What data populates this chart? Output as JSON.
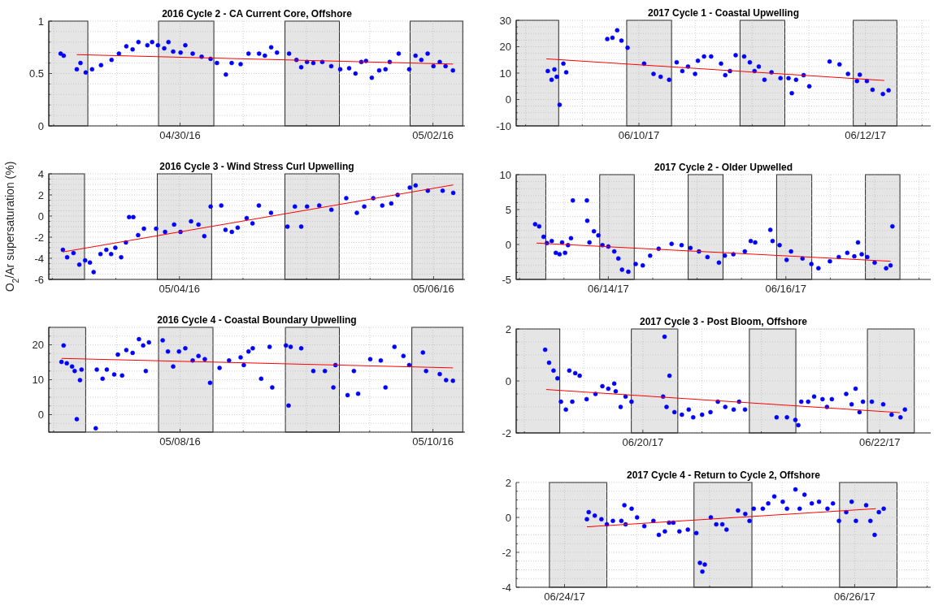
{
  "chart_data": [
    {
      "type": "scatter",
      "title": "2016 Cycle 2 - CA Current Core, Offshore",
      "marker": "circle",
      "grid": true,
      "xlim": [
        "2016-04-28T23:05",
        "2016-05-02T06:05"
      ],
      "xticks": [
        {
          "value": "2016-04-29T00:00",
          "label": null
        },
        {
          "value": "2016-04-29T12:00",
          "label": null
        },
        {
          "value": "2016-04-30T00:00",
          "label": "04/30/16"
        },
        {
          "value": "2016-04-30T12:00",
          "label": null
        },
        {
          "value": "2016-05-01T00:00",
          "label": null
        },
        {
          "value": "2016-05-01T12:00",
          "label": null
        },
        {
          "value": "2016-05-02T00:00",
          "label": "05/02/16"
        }
      ],
      "ylim": [
        0,
        1
      ],
      "yticks": [
        0,
        {
          "value": 0.1,
          "label": null
        },
        {
          "value": 0.2,
          "label": null
        },
        {
          "value": 0.3,
          "label": null
        },
        {
          "value": 0.4,
          "label": null
        },
        0.5,
        {
          "value": 0.6,
          "label": null
        },
        {
          "value": 0.7,
          "label": null
        },
        {
          "value": 0.8,
          "label": null
        },
        {
          "value": 0.9,
          "label": null
        },
        1
      ],
      "bands": [
        {
          "axis": "x",
          "from": "2016-04-28T23:05",
          "to": "2016-04-29T06:30",
          "color": "#e5e5e5"
        },
        {
          "axis": "x",
          "from": "2016-04-29T19:55",
          "to": "2016-04-30T06:25",
          "color": "#e5e5e5"
        },
        {
          "axis": "x",
          "from": "2016-04-30T19:55",
          "to": "2016-05-01T06:15",
          "color": "#e5e5e5"
        },
        {
          "axis": "x",
          "from": "2016-05-01T19:40",
          "to": "2016-05-02T05:40",
          "color": "#e5e5e5"
        }
      ],
      "series": [
        {
          "type": "scatter",
          "color": "#0000ff",
          "x": [
            "2016-04-29T01:20",
            "2016-04-29T01:55",
            "2016-04-29T04:24",
            "2016-04-29T05:06",
            "2016-04-29T06:06",
            "2016-04-29T07:18",
            "2016-04-29T09:00",
            "2016-04-29T11:00",
            "2016-04-29T12:24",
            "2016-04-29T13:48",
            "2016-04-29T15:00",
            "2016-04-29T16:06",
            "2016-04-29T17:48",
            "2016-04-29T18:42",
            "2016-04-29T19:48",
            "2016-04-29T21:00",
            "2016-04-29T21:48",
            "2016-04-29T22:42",
            "2016-04-30T00:06",
            "2016-04-30T01:00",
            "2016-04-30T02:24",
            "2016-04-30T04:06",
            "2016-04-30T05:48",
            "2016-04-30T07:00",
            "2016-04-30T08:42",
            "2016-04-30T09:48",
            "2016-04-30T11:30",
            "2016-04-30T13:00",
            "2016-04-30T15:00",
            "2016-04-30T16:06",
            "2016-04-30T17:18",
            "2016-04-30T18:24",
            "2016-04-30T20:42",
            "2016-04-30T22:06",
            "2016-04-30T23:00",
            "2016-05-01T00:06",
            "2016-05-01T01:18",
            "2016-05-01T03:00",
            "2016-05-01T04:42",
            "2016-05-01T06:24",
            "2016-05-01T08:06",
            "2016-05-01T09:18",
            "2016-05-01T10:24",
            "2016-05-01T11:18",
            "2016-05-01T12:24",
            "2016-05-01T13:48",
            "2016-05-01T15:00",
            "2016-05-01T15:48",
            "2016-05-01T17:30",
            "2016-05-01T19:30",
            "2016-05-01T20:42",
            "2016-05-01T21:48",
            "2016-05-01T23:00",
            "2016-05-02T00:06",
            "2016-05-02T01:18",
            "2016-05-02T02:24",
            "2016-05-02T03:48"
          ],
          "values": [
            0.69,
            0.67,
            0.54,
            0.6,
            0.51,
            0.54,
            0.58,
            0.63,
            0.69,
            0.76,
            0.73,
            0.8,
            0.77,
            0.8,
            0.77,
            0.74,
            0.8,
            0.71,
            0.7,
            0.77,
            0.69,
            0.66,
            0.64,
            0.6,
            0.49,
            0.6,
            0.59,
            0.69,
            0.69,
            0.67,
            0.75,
            0.7,
            0.69,
            0.63,
            0.56,
            0.61,
            0.6,
            0.61,
            0.57,
            0.54,
            0.55,
            0.5,
            0.61,
            0.62,
            0.46,
            0.53,
            0.54,
            0.61,
            0.69,
            0.54,
            0.67,
            0.63,
            0.69,
            0.57,
            0.61,
            0.57,
            0.53
          ]
        },
        {
          "type": "line",
          "color": "#ff0000",
          "marker": "none",
          "x": [
            "2016-04-29T04:24",
            "2016-05-02T03:48"
          ],
          "values": [
            0.68,
            0.59
          ]
        }
      ]
    },
    {
      "type": "scatter",
      "title": "2017 Cycle 1 - Coastal Upwelling",
      "marker": "circle",
      "grid": true,
      "xlim": [
        "2017-06-08T22:00",
        "2017-06-12T13:50"
      ],
      "xticks": [
        {
          "value": "2017-06-09T00:00",
          "label": null
        },
        {
          "value": "2017-06-09T12:00",
          "label": null
        },
        {
          "value": "2017-06-10T00:00",
          "label": "06/10/17"
        },
        {
          "value": "2017-06-10T12:00",
          "label": null
        },
        {
          "value": "2017-06-11T00:00",
          "label": null
        },
        {
          "value": "2017-06-11T12:00",
          "label": null
        },
        {
          "value": "2017-06-12T00:00",
          "label": "06/12/17"
        },
        {
          "value": "2017-06-12T12:00",
          "label": null
        }
      ],
      "ylim": [
        -10,
        30
      ],
      "yticks": [
        -10,
        {
          "value": -7.5,
          "label": null
        },
        {
          "value": -5,
          "label": null
        },
        {
          "value": -2.5,
          "label": null
        },
        0,
        {
          "value": 2.5,
          "label": null
        },
        {
          "value": 5,
          "label": null
        },
        {
          "value": 7.5,
          "label": null
        },
        10,
        {
          "value": 12.5,
          "label": null
        },
        {
          "value": 15,
          "label": null
        },
        {
          "value": 17.5,
          "label": null
        },
        20,
        {
          "value": 22.5,
          "label": null
        },
        {
          "value": 25,
          "label": null
        },
        {
          "value": 27.5,
          "label": null
        },
        30
      ],
      "bands": [
        {
          "axis": "x",
          "from": "2017-06-08T22:00",
          "to": "2017-06-09T07:00",
          "color": "#e5e5e5"
        },
        {
          "axis": "x",
          "from": "2017-06-09T21:25",
          "to": "2017-06-10T06:55",
          "color": "#e5e5e5"
        },
        {
          "axis": "x",
          "from": "2017-06-10T21:25",
          "to": "2017-06-11T06:55",
          "color": "#e5e5e5"
        },
        {
          "axis": "x",
          "from": "2017-06-11T21:25",
          "to": "2017-06-12T06:40",
          "color": "#e5e5e5"
        }
      ],
      "series": [
        {
          "type": "scatter",
          "color": "#0000ff",
          "x": [
            "2017-06-09T04:42",
            "2017-06-09T05:30",
            "2017-06-09T06:06",
            "2017-06-09T06:36",
            "2017-06-09T07:12",
            "2017-06-09T08:00",
            "2017-06-09T08:36",
            "2017-06-09T17:18",
            "2017-06-09T18:24",
            "2017-06-09T19:24",
            "2017-06-09T20:18",
            "2017-06-09T21:36",
            "2017-06-10T01:06",
            "2017-06-10T03:06",
            "2017-06-10T04:36",
            "2017-06-10T06:24",
            "2017-06-10T08:00",
            "2017-06-10T09:12",
            "2017-06-10T10:24",
            "2017-06-10T11:54",
            "2017-06-10T12:30",
            "2017-06-10T13:48",
            "2017-06-10T15:18",
            "2017-06-10T17:24",
            "2017-06-10T18:18",
            "2017-06-10T19:18",
            "2017-06-10T20:30",
            "2017-06-10T22:18",
            "2017-06-10T23:30",
            "2017-06-11T00:30",
            "2017-06-11T01:24",
            "2017-06-11T02:36",
            "2017-06-11T04:06",
            "2017-06-11T06:00",
            "2017-06-11T07:42",
            "2017-06-11T08:24",
            "2017-06-11T09:18",
            "2017-06-11T10:54",
            "2017-06-11T12:06",
            "2017-06-11T16:24",
            "2017-06-11T18:30",
            "2017-06-11T20:18",
            "2017-06-11T22:12",
            "2017-06-11T22:48",
            "2017-06-12T00:18",
            "2017-06-12T01:30",
            "2017-06-12T03:42",
            "2017-06-12T04:54"
          ],
          "values": [
            10.8,
            7.5,
            11.4,
            8.6,
            -2,
            13.6,
            10.3,
            22.9,
            23.4,
            26.2,
            22.3,
            19.6,
            13.6,
            9.7,
            8.6,
            7.5,
            14.1,
            10.8,
            12.5,
            9.7,
            14.7,
            16.3,
            16.3,
            13.6,
            9.2,
            10.8,
            16.8,
            16.3,
            14.1,
            10.8,
            12.5,
            7.5,
            10.3,
            8.1,
            8.1,
            2.4,
            7.5,
            9.2,
            5,
            14.4,
            13.3,
            9.7,
            7,
            9.4,
            7,
            3.7,
            2.1,
            3.5
          ]
        },
        {
          "type": "line",
          "color": "#ff0000",
          "marker": "none",
          "x": [
            "2017-06-09T04:24",
            "2017-06-12T04:00"
          ],
          "values": [
            15.4,
            7.2
          ]
        }
      ]
    },
    {
      "type": "scatter",
      "title": "2016 Cycle 3 - Wind Stress Curl Upwelling",
      "ylabel": "O$_{2}$/Ar supersaturation (%)",
      "marker": "circle",
      "grid": true,
      "xlim": [
        "2016-05-02T23:20",
        "2016-05-06T05:55"
      ],
      "xticks": [
        {
          "value": "2016-05-03T00:00",
          "label": null
        },
        {
          "value": "2016-05-03T12:00",
          "label": null
        },
        {
          "value": "2016-05-04T00:00",
          "label": "05/04/16"
        },
        {
          "value": "2016-05-04T12:00",
          "label": null
        },
        {
          "value": "2016-05-05T00:00",
          "label": null
        },
        {
          "value": "2016-05-05T12:00",
          "label": null
        },
        {
          "value": "2016-05-06T00:00",
          "label": "05/06/16"
        }
      ],
      "ylim": [
        -6,
        4
      ],
      "yticks": [
        -6,
        {
          "value": -5.5,
          "label": null
        },
        {
          "value": -5,
          "label": null
        },
        {
          "value": -4.5,
          "label": null
        },
        -4,
        {
          "value": -3.5,
          "label": null
        },
        {
          "value": -3,
          "label": null
        },
        {
          "value": -2.5,
          "label": null
        },
        -2,
        {
          "value": -1.5,
          "label": null
        },
        {
          "value": -1,
          "label": null
        },
        {
          "value": -0.5,
          "label": null
        },
        0,
        {
          "value": 0.5,
          "label": null
        },
        {
          "value": 1,
          "label": null
        },
        {
          "value": 1.5,
          "label": null
        },
        2,
        {
          "value": 2.5,
          "label": null
        },
        {
          "value": 3,
          "label": null
        },
        {
          "value": 3.5,
          "label": null
        },
        4
      ],
      "bands": [
        {
          "axis": "x",
          "from": "2016-05-02T23:20",
          "to": "2016-05-03T06:05",
          "color": "#e5e5e5"
        },
        {
          "axis": "x",
          "from": "2016-05-03T19:50",
          "to": "2016-05-04T06:05",
          "color": "#e5e5e5"
        },
        {
          "axis": "x",
          "from": "2016-05-04T19:55",
          "to": "2016-05-05T06:10",
          "color": "#e5e5e5"
        },
        {
          "axis": "x",
          "from": "2016-05-05T19:55",
          "to": "2016-05-06T05:30",
          "color": "#e5e5e5"
        }
      ],
      "series": [
        {
          "type": "scatter",
          "color": "#0000ff",
          "x": [
            "2016-05-03T02:00",
            "2016-05-03T02:48",
            "2016-05-03T04:00",
            "2016-05-03T05:06",
            "2016-05-03T06:12",
            "2016-05-03T07:06",
            "2016-05-03T07:48",
            "2016-05-03T09:06",
            "2016-05-03T10:12",
            "2016-05-03T11:06",
            "2016-05-03T11:54",
            "2016-05-03T13:00",
            "2016-05-03T13:54",
            "2016-05-03T14:30",
            "2016-05-03T15:18",
            "2016-05-03T16:12",
            "2016-05-03T17:18",
            "2016-05-03T19:36",
            "2016-05-03T21:18",
            "2016-05-03T23:00",
            "2016-05-04T00:12",
            "2016-05-04T02:12",
            "2016-05-04T03:36",
            "2016-05-04T04:42",
            "2016-05-04T05:54",
            "2016-05-04T07:54",
            "2016-05-04T08:42",
            "2016-05-04T09:54",
            "2016-05-04T11:00",
            "2016-05-04T12:42",
            "2016-05-04T13:48",
            "2016-05-04T15:00",
            "2016-05-04T17:18",
            "2016-05-04T20:24",
            "2016-05-04T21:48",
            "2016-05-04T23:00",
            "2016-05-05T00:06",
            "2016-05-05T02:24",
            "2016-05-05T04:42",
            "2016-05-05T07:30",
            "2016-05-05T09:30",
            "2016-05-05T10:54",
            "2016-05-05T12:36",
            "2016-05-05T14:18",
            "2016-05-05T16:00",
            "2016-05-05T17:12",
            "2016-05-05T19:30",
            "2016-05-05T20:36",
            "2016-05-05T22:54",
            "2016-05-06T01:42",
            "2016-05-06T03:42"
          ],
          "values": [
            -3.2,
            -3.9,
            -3.5,
            -4.6,
            -4.2,
            -4.4,
            -5.3,
            -3.6,
            -3.2,
            -3.6,
            -3,
            -3.9,
            -2.5,
            -0.1,
            -0.1,
            -1.8,
            -1.2,
            -1.2,
            -1.5,
            -0.8,
            -1.5,
            -0.5,
            -0.8,
            -1.9,
            0.9,
            1,
            -1.3,
            -1.5,
            -1.1,
            -0.2,
            -0.7,
            1,
            0.3,
            -1,
            0.9,
            -1,
            0.9,
            1,
            0.6,
            1.7,
            0.3,
            0.9,
            1.7,
            1,
            1.2,
            2,
            2.7,
            2.9,
            2.4,
            2.4,
            2.2
          ]
        },
        {
          "type": "line",
          "color": "#ff0000",
          "marker": "none",
          "x": [
            "2016-05-03T02:00",
            "2016-05-06T03:42"
          ],
          "values": [
            -3.4,
            2.95
          ]
        }
      ]
    },
    {
      "type": "scatter",
      "title": "2017 Cycle 2 - Older Upwelled",
      "marker": "circle",
      "grid": true,
      "xlim": [
        "2017-06-12T23:05",
        "2017-06-17T15:10"
      ],
      "xticks": [
        {
          "value": "2017-06-13T00:00",
          "label": null
        },
        {
          "value": "2017-06-13T12:00",
          "label": null
        },
        {
          "value": "2017-06-14T00:00",
          "label": "06/14/17"
        },
        {
          "value": "2017-06-14T12:00",
          "label": null
        },
        {
          "value": "2017-06-15T00:00",
          "label": null
        },
        {
          "value": "2017-06-15T12:00",
          "label": null
        },
        {
          "value": "2017-06-16T00:00",
          "label": "06/16/17"
        },
        {
          "value": "2017-06-16T12:00",
          "label": null
        },
        {
          "value": "2017-06-17T00:00",
          "label": null
        },
        {
          "value": "2017-06-17T12:00",
          "label": null
        }
      ],
      "ylim": [
        -5,
        10
      ],
      "yticks": [
        -5,
        {
          "value": -4,
          "label": null
        },
        {
          "value": -3,
          "label": null
        },
        {
          "value": -2,
          "label": null
        },
        {
          "value": -1,
          "label": null
        },
        0,
        {
          "value": 1,
          "label": null
        },
        {
          "value": 2,
          "label": null
        },
        {
          "value": 3,
          "label": null
        },
        {
          "value": 4,
          "label": null
        },
        5,
        {
          "value": 6,
          "label": null
        },
        {
          "value": 7,
          "label": null
        },
        {
          "value": 8,
          "label": null
        },
        {
          "value": 9,
          "label": null
        },
        10
      ],
      "bands": [
        {
          "axis": "x",
          "from": "2017-06-12T23:05",
          "to": "2017-06-13T07:05",
          "color": "#e5e5e5"
        },
        {
          "axis": "x",
          "from": "2017-06-13T21:40",
          "to": "2017-06-14T07:00",
          "color": "#e5e5e5"
        },
        {
          "axis": "x",
          "from": "2017-06-14T21:35",
          "to": "2017-06-15T07:00",
          "color": "#e5e5e5"
        },
        {
          "axis": "x",
          "from": "2017-06-15T21:30",
          "to": "2017-06-16T07:00",
          "color": "#e5e5e5"
        },
        {
          "axis": "x",
          "from": "2017-06-16T21:30",
          "to": "2017-06-17T06:50",
          "color": "#e5e5e5"
        }
      ],
      "series": [
        {
          "type": "scatter",
          "color": "#0000ff",
          "x": [
            "2017-06-13T04:12",
            "2017-06-13T05:18",
            "2017-06-13T06:30",
            "2017-06-13T07:24",
            "2017-06-13T08:42",
            "2017-06-13T09:48",
            "2017-06-13T10:48",
            "2017-06-13T11:30",
            "2017-06-13T12:18",
            "2017-06-13T13:06",
            "2017-06-13T13:54",
            "2017-06-13T14:24",
            "2017-06-13T18:12",
            "2017-06-13T18:18",
            "2017-06-13T18:54",
            "2017-06-13T20:06",
            "2017-06-13T21:18",
            "2017-06-13T22:24",
            "2017-06-14T00:00",
            "2017-06-14T01:36",
            "2017-06-14T02:42",
            "2017-06-14T03:42",
            "2017-06-14T05:24",
            "2017-06-14T07:24",
            "2017-06-14T09:18",
            "2017-06-14T11:18",
            "2017-06-14T13:36",
            "2017-06-14T17:06",
            "2017-06-14T19:48",
            "2017-06-14T22:12",
            "2017-06-15T00:30",
            "2017-06-15T02:48",
            "2017-06-15T05:54",
            "2017-06-15T07:30",
            "2017-06-15T09:48",
            "2017-06-15T12:54",
            "2017-06-15T14:30",
            "2017-06-15T15:42",
            "2017-06-15T19:48",
            "2017-06-15T20:24",
            "2017-06-15T22:18",
            "2017-06-16T00:12",
            "2017-06-16T01:24",
            "2017-06-16T04:30",
            "2017-06-16T06:54",
            "2017-06-16T08:48",
            "2017-06-16T11:54",
            "2017-06-16T14:18",
            "2017-06-16T16:36",
            "2017-06-16T18:30",
            "2017-06-16T19:30",
            "2017-06-16T20:30",
            "2017-06-16T22:00",
            "2017-06-17T00:00",
            "2017-06-17T03:06",
            "2017-06-17T04:18",
            "2017-06-17T04:48"
          ],
          "values": [
            2.9,
            2.6,
            1.1,
            0.2,
            0.5,
            -1.2,
            -1.4,
            0.3,
            -1.2,
            -0.1,
            0.9,
            6.3,
            6.3,
            3.4,
            0.3,
            1.9,
            1.3,
            -0.1,
            -0.3,
            -1,
            -2,
            -3.6,
            -3.9,
            -2.8,
            -3,
            -1.6,
            -0.6,
            0.1,
            -0.1,
            -0.5,
            -1,
            -1.8,
            -2.6,
            -1.6,
            -1.4,
            -1,
            0.5,
            0.3,
            2.1,
            0.5,
            -0.1,
            -2.2,
            -1,
            -2,
            -2.8,
            -3.4,
            -2.4,
            -1.8,
            -1.2,
            -1.7,
            0.3,
            -1.4,
            -1.8,
            -2.6,
            -3.4,
            -3,
            2.6
          ]
        },
        {
          "type": "line",
          "color": "#ff0000",
          "marker": "none",
          "x": [
            "2017-06-13T04:36",
            "2017-06-17T04:18"
          ],
          "values": [
            0.2,
            -2.4
          ]
        }
      ]
    },
    {
      "type": "scatter",
      "title": "2016 Cycle 4 - Coastal Boundary Upwelling",
      "marker": "circle",
      "grid": true,
      "xlim": [
        "2016-05-06T23:05",
        "2016-05-10T06:05"
      ],
      "xticks": [
        {
          "value": "2016-05-07T00:00",
          "label": null
        },
        {
          "value": "2016-05-07T12:00",
          "label": null
        },
        {
          "value": "2016-05-08T00:00",
          "label": "05/08/16"
        },
        {
          "value": "2016-05-08T12:00",
          "label": null
        },
        {
          "value": "2016-05-09T00:00",
          "label": null
        },
        {
          "value": "2016-05-09T12:00",
          "label": null
        },
        {
          "value": "2016-05-10T00:00",
          "label": "05/10/16"
        }
      ],
      "ylim": [
        -5,
        25
      ],
      "yticks": [
        {
          "value": -5,
          "label": null
        },
        {
          "value": -2.5,
          "label": null
        },
        0,
        {
          "value": 2.5,
          "label": null
        },
        {
          "value": 5,
          "label": null
        },
        {
          "value": 7.5,
          "label": null
        },
        10,
        {
          "value": 12.5,
          "label": null
        },
        {
          "value": 15,
          "label": null
        },
        {
          "value": 17.5,
          "label": null
        },
        20,
        {
          "value": 22.5,
          "label": null
        },
        {
          "value": 25,
          "label": null
        }
      ],
      "bands": [
        {
          "axis": "x",
          "from": "2016-05-06T23:05",
          "to": "2016-05-07T06:05",
          "color": "#e5e5e5"
        },
        {
          "axis": "x",
          "from": "2016-05-07T19:55",
          "to": "2016-05-08T06:15",
          "color": "#e5e5e5"
        },
        {
          "axis": "x",
          "from": "2016-05-08T20:00",
          "to": "2016-05-09T06:15",
          "color": "#e5e5e5"
        },
        {
          "axis": "x",
          "from": "2016-05-09T20:00",
          "to": "2016-05-10T05:40",
          "color": "#e5e5e5"
        }
      ],
      "series": [
        {
          "type": "scatter",
          "color": "#0000ff",
          "x": [
            "2016-05-07T01:30",
            "2016-05-07T01:54",
            "2016-05-07T02:30",
            "2016-05-07T03:30",
            "2016-05-07T04:00",
            "2016-05-07T04:24",
            "2016-05-07T05:00",
            "2016-05-07T05:18",
            "2016-05-07T08:00",
            "2016-05-07T08:12",
            "2016-05-07T09:18",
            "2016-05-07T10:06",
            "2016-05-07T11:30",
            "2016-05-07T12:12",
            "2016-05-07T13:00",
            "2016-05-07T13:48",
            "2016-05-07T15:00",
            "2016-05-07T16:12",
            "2016-05-07T17:00",
            "2016-05-07T17:30",
            "2016-05-07T18:06",
            "2016-05-07T20:42",
            "2016-05-07T21:42",
            "2016-05-07T22:42",
            "2016-05-07T23:48",
            "2016-05-08T01:00",
            "2016-05-08T02:24",
            "2016-05-08T03:30",
            "2016-05-08T04:42",
            "2016-05-08T05:42",
            "2016-05-08T07:30",
            "2016-05-08T09:18",
            "2016-05-08T11:30",
            "2016-05-08T12:06",
            "2016-05-08T13:00",
            "2016-05-08T13:48",
            "2016-05-08T15:24",
            "2016-05-08T17:00",
            "2016-05-08T17:30",
            "2016-05-08T20:06",
            "2016-05-08T20:36",
            "2016-05-08T21:00",
            "2016-05-08T23:00",
            "2016-05-09T01:18",
            "2016-05-09T03:30",
            "2016-05-09T05:06",
            "2016-05-09T05:30",
            "2016-05-09T07:48",
            "2016-05-09T09:00",
            "2016-05-09T09:48",
            "2016-05-09T12:06",
            "2016-05-09T14:06",
            "2016-05-09T15:00",
            "2016-05-09T16:42",
            "2016-05-09T18:24",
            "2016-05-09T19:30",
            "2016-05-09T22:06",
            "2016-05-09T22:42",
            "2016-05-10T01:18",
            "2016-05-10T02:30",
            "2016-05-10T03:48"
          ],
          "values": [
            15.1,
            19.8,
            14.7,
            13.8,
            12.5,
            -1.3,
            9.9,
            12.9,
            -3.9,
            12.9,
            10.3,
            12.9,
            11.5,
            17.2,
            11.2,
            18.5,
            17.7,
            21.6,
            19.8,
            12.5,
            20.7,
            21.3,
            18.1,
            13.8,
            18.1,
            19,
            15.5,
            16.8,
            15.9,
            9.1,
            13.4,
            15.5,
            16.4,
            14.2,
            18.1,
            19,
            10.3,
            19.4,
            7.8,
            19.8,
            2.6,
            19.4,
            19,
            12.5,
            12.5,
            7.8,
            14.2,
            5.6,
            12.5,
            6,
            15.9,
            15.5,
            7.8,
            19.4,
            16.8,
            14.2,
            17.8,
            12.5,
            11.6,
            9.9,
            9.7
          ]
        },
        {
          "type": "line",
          "color": "#ff0000",
          "marker": "none",
          "x": [
            "2016-05-07T01:30",
            "2016-05-10T03:48"
          ],
          "values": [
            16.1,
            13.4
          ]
        }
      ]
    },
    {
      "type": "scatter",
      "title": "2017 Cycle 3 - Post Bloom, Offshore",
      "marker": "circle",
      "grid": true,
      "xlim": [
        "2017-06-18T22:20",
        "2017-06-22T10:20"
      ],
      "xticks": [
        {
          "value": "2017-06-19T00:00",
          "label": null
        },
        {
          "value": "2017-06-19T12:00",
          "label": null
        },
        {
          "value": "2017-06-20T00:00",
          "label": "06/20/17"
        },
        {
          "value": "2017-06-20T12:00",
          "label": null
        },
        {
          "value": "2017-06-21T00:00",
          "label": null
        },
        {
          "value": "2017-06-21T12:00",
          "label": null
        },
        {
          "value": "2017-06-22T00:00",
          "label": "06/22/17"
        }
      ],
      "ylim": [
        -2,
        2
      ],
      "yticks": [
        -2,
        {
          "value": -1.5,
          "label": null
        },
        {
          "value": -1,
          "label": null
        },
        {
          "value": -0.5,
          "label": null
        },
        0,
        {
          "value": 0.5,
          "label": null
        },
        {
          "value": 1,
          "label": null
        },
        {
          "value": 1.5,
          "label": null
        },
        2
      ],
      "bands": [
        {
          "axis": "x",
          "from": "2017-06-18T22:20",
          "to": "2017-06-19T07:10",
          "color": "#e5e5e5"
        },
        {
          "axis": "x",
          "from": "2017-06-19T21:40",
          "to": "2017-06-20T07:05",
          "color": "#e5e5e5"
        },
        {
          "axis": "x",
          "from": "2017-06-20T21:35",
          "to": "2017-06-21T07:00",
          "color": "#e5e5e5"
        },
        {
          "axis": "x",
          "from": "2017-06-21T21:30",
          "to": "2017-06-22T07:00",
          "color": "#e5e5e5"
        }
      ],
      "series": [
        {
          "type": "scatter",
          "color": "#0000ff",
          "x": [
            "2017-06-19T04:12",
            "2017-06-19T05:00",
            "2017-06-19T05:54",
            "2017-06-19T06:42",
            "2017-06-19T07:24",
            "2017-06-19T08:24",
            "2017-06-19T09:06",
            "2017-06-19T09:42",
            "2017-06-19T10:18",
            "2017-06-19T11:12",
            "2017-06-19T12:36",
            "2017-06-19T14:24",
            "2017-06-19T15:48",
            "2017-06-19T17:00",
            "2017-06-19T18:12",
            "2017-06-19T18:30",
            "2017-06-19T19:30",
            "2017-06-19T20:30",
            "2017-06-19T21:42",
            "2017-06-20T04:06",
            "2017-06-20T04:24",
            "2017-06-20T04:48",
            "2017-06-20T05:24",
            "2017-06-20T06:24",
            "2017-06-20T07:54",
            "2017-06-20T09:18",
            "2017-06-20T10:12",
            "2017-06-20T12:00",
            "2017-06-20T13:42",
            "2017-06-20T15:12",
            "2017-06-20T16:42",
            "2017-06-20T18:24",
            "2017-06-20T19:30",
            "2017-06-20T20:42",
            "2017-06-21T03:06",
            "2017-06-21T05:12",
            "2017-06-21T06:54",
            "2017-06-21T07:30",
            "2017-06-21T08:06",
            "2017-06-21T09:30",
            "2017-06-21T10:42",
            "2017-06-21T12:24",
            "2017-06-21T13:18",
            "2017-06-21T14:18",
            "2017-06-21T17:12",
            "2017-06-21T18:18",
            "2017-06-21T19:06",
            "2017-06-21T19:54",
            "2017-06-21T20:36",
            "2017-06-21T22:24",
            "2017-06-22T00:42",
            "2017-06-22T02:24",
            "2017-06-22T04:12",
            "2017-06-22T05:06"
          ],
          "values": [
            1.2,
            0.7,
            0.4,
            0.1,
            -0.8,
            -1.1,
            0.4,
            -0.8,
            0.3,
            0.2,
            -0.7,
            -0.5,
            -0.2,
            -0.3,
            -0.1,
            -0.4,
            -1,
            -0.6,
            -0.8,
            -0.6,
            1.7,
            -1,
            0.2,
            -1.2,
            -1.3,
            -1.1,
            -1.4,
            -1.3,
            -1.2,
            -0.8,
            -1,
            -1.1,
            -0.8,
            -1.1,
            -1.4,
            -1.4,
            -1.5,
            -1.7,
            -0.8,
            -0.8,
            -0.6,
            -0.7,
            -1,
            -0.7,
            -0.5,
            -0.9,
            -0.3,
            -1.2,
            -0.8,
            -0.8,
            -0.9,
            -1.3,
            -1.4,
            -1.1
          ]
        },
        {
          "type": "line",
          "color": "#ff0000",
          "marker": "none",
          "x": [
            "2017-06-19T04:24",
            "2017-06-22T04:06"
          ],
          "values": [
            -0.33,
            -1.22
          ]
        }
      ]
    },
    {
      "type": "scatter",
      "title": "2017 Cycle 4 - Return to Cycle 2, Offshore",
      "marker": "circle",
      "grid": true,
      "xlim": [
        "2017-06-23T16:00",
        "2017-06-26T12:35"
      ],
      "xticks": [
        {
          "value": "2017-06-24T00:00",
          "label": "06/24/17"
        },
        {
          "value": "2017-06-24T12:00",
          "label": null
        },
        {
          "value": "2017-06-25T00:00",
          "label": null
        },
        {
          "value": "2017-06-25T12:00",
          "label": null
        },
        {
          "value": "2017-06-26T00:00",
          "label": "06/26/17"
        },
        {
          "value": "2017-06-26T12:00",
          "label": null
        }
      ],
      "ylim": [
        -4,
        2
      ],
      "yticks": [
        -4,
        {
          "value": -3.5,
          "label": null
        },
        {
          "value": -3,
          "label": null
        },
        {
          "value": -2.5,
          "label": null
        },
        -2,
        {
          "value": -1.5,
          "label": null
        },
        {
          "value": -1,
          "label": null
        },
        {
          "value": -0.5,
          "label": null
        },
        0,
        {
          "value": 0.5,
          "label": null
        },
        {
          "value": 1,
          "label": null
        },
        {
          "value": 1.5,
          "label": null
        },
        2
      ],
      "bands": [
        {
          "axis": "x",
          "from": "2017-06-23T21:30",
          "to": "2017-06-24T07:00",
          "color": "#e5e5e5"
        },
        {
          "axis": "x",
          "from": "2017-06-24T21:25",
          "to": "2017-06-25T07:00",
          "color": "#e5e5e5"
        },
        {
          "axis": "x",
          "from": "2017-06-25T21:30",
          "to": "2017-06-26T07:00",
          "color": "#e5e5e5"
        }
      ],
      "series": [
        {
          "type": "scatter",
          "color": "#0000ff",
          "x": [
            "2017-06-24T03:42",
            "2017-06-24T04:00",
            "2017-06-24T05:00",
            "2017-06-24T06:06",
            "2017-06-24T07:00",
            "2017-06-24T08:00",
            "2017-06-24T09:24",
            "2017-06-24T09:54",
            "2017-06-24T10:06",
            "2017-06-24T11:06",
            "2017-06-24T12:00",
            "2017-06-24T13:12",
            "2017-06-24T14:42",
            "2017-06-24T15:36",
            "2017-06-24T16:36",
            "2017-06-24T17:18",
            "2017-06-24T18:00",
            "2017-06-24T19:00",
            "2017-06-24T20:24",
            "2017-06-24T21:48",
            "2017-06-24T22:24",
            "2017-06-24T22:48",
            "2017-06-24T23:12",
            "2017-06-25T00:12",
            "2017-06-25T01:06",
            "2017-06-25T02:06",
            "2017-06-25T02:48",
            "2017-06-25T04:42",
            "2017-06-25T05:54",
            "2017-06-25T06:36",
            "2017-06-25T07:18",
            "2017-06-25T08:48",
            "2017-06-25T09:42",
            "2017-06-25T10:42",
            "2017-06-25T12:06",
            "2017-06-25T12:48",
            "2017-06-25T14:12",
            "2017-06-25T14:54",
            "2017-06-25T15:42",
            "2017-06-25T16:54",
            "2017-06-25T18:06",
            "2017-06-25T19:30",
            "2017-06-25T20:24",
            "2017-06-25T21:24",
            "2017-06-25T22:36",
            "2017-06-25T23:30",
            "2017-06-26T00:12",
            "2017-06-26T01:54",
            "2017-06-26T02:36",
            "2017-06-26T03:18",
            "2017-06-26T04:00",
            "2017-06-26T04:48"
          ],
          "values": [
            -0.1,
            0.3,
            0.1,
            -0.1,
            -0.4,
            -0.2,
            -0.2,
            0.7,
            -0.4,
            0.5,
            0,
            -0.5,
            -0.2,
            -1,
            -0.8,
            -0.3,
            -0.3,
            -0.8,
            -0.7,
            -0.9,
            -2.6,
            -3.1,
            -2.7,
            0,
            -0.4,
            -0.4,
            -0.7,
            0.4,
            0.2,
            -0.2,
            0.5,
            0.5,
            0.8,
            1.2,
            0.9,
            0.5,
            1.6,
            0.5,
            1.3,
            0.8,
            0.9,
            0.5,
            0.8,
            -0.2,
            0.3,
            0.9,
            -0.2,
            0.7,
            -0.2,
            -1,
            0.3,
            0.5
          ]
        },
        {
          "type": "line",
          "color": "#ff0000",
          "marker": "none",
          "x": [
            "2017-06-24T03:42",
            "2017-06-26T03:30"
          ],
          "values": [
            -0.54,
            0.5
          ]
        }
      ]
    }
  ]
}
